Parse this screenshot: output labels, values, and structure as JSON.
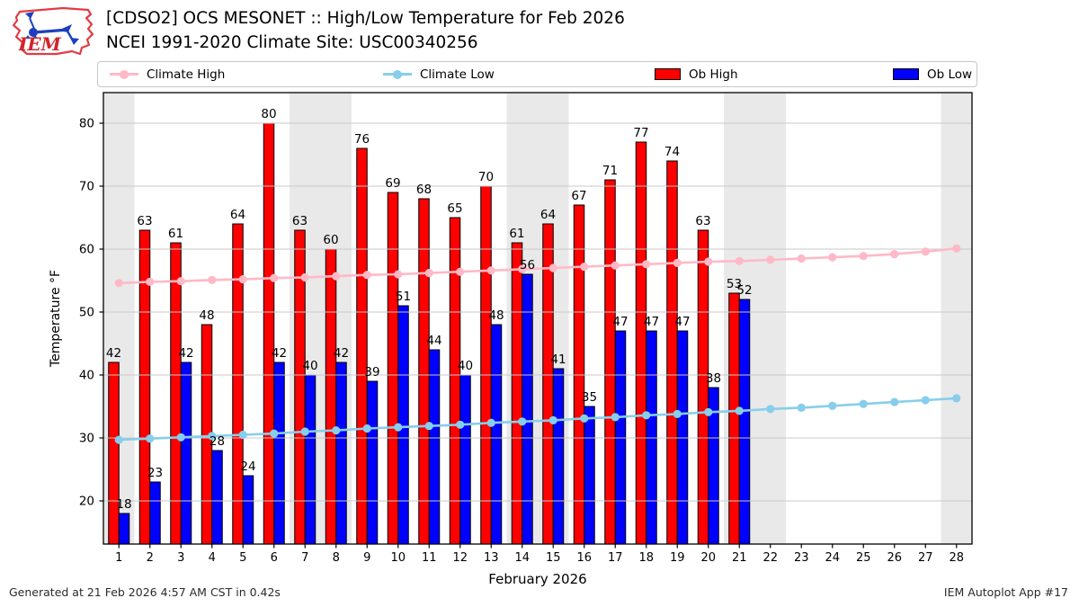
{
  "header": {
    "title_line1": "[CDSO2] OCS MESONET :: High/Low Temperature for Feb 2026",
    "title_line2": "NCEI 1991-2020 Climate Site: USC00340256",
    "logo_text": "IEM"
  },
  "legend": {
    "items": [
      {
        "label": "Climate High",
        "type": "line",
        "color": "#ffb9c6"
      },
      {
        "label": "Climate Low",
        "type": "line",
        "color": "#87ceeb"
      },
      {
        "label": "Ob High",
        "type": "patch",
        "color": "#ff0000"
      },
      {
        "label": "Ob Low",
        "type": "patch",
        "color": "#0000ff"
      }
    ]
  },
  "footer": {
    "left": "Generated at 21 Feb 2026 4:57 AM CST in 0.42s",
    "right": "IEM Autoplot App #17"
  },
  "chart_data": {
    "type": "bar",
    "x": [
      1,
      2,
      3,
      4,
      5,
      6,
      7,
      8,
      9,
      10,
      11,
      12,
      13,
      14,
      15,
      16,
      17,
      18,
      19,
      20,
      21,
      22,
      23,
      24,
      25,
      26,
      27,
      28
    ],
    "xlabel": "February 2026",
    "ylabel": "Temperature °F",
    "ylim": [
      13,
      85
    ],
    "yticks": [
      20,
      30,
      40,
      50,
      60,
      70,
      80
    ],
    "grid": true,
    "legend_position": "top",
    "weekend_bands": [
      [
        0.5,
        1.5
      ],
      [
        6.5,
        8.5
      ],
      [
        13.5,
        15.5
      ],
      [
        20.5,
        22.5
      ],
      [
        27.5,
        28.5
      ]
    ],
    "colors": {
      "band": "#e9e9e9",
      "grid": "#c9c9c9",
      "spine": "#000000",
      "bar_edge": "#000000",
      "label_text": "#000000"
    },
    "series": [
      {
        "name": "Climate High",
        "type": "line",
        "color": "#ffb9c6",
        "values": [
          54.6,
          54.8,
          54.9,
          55.1,
          55.2,
          55.4,
          55.5,
          55.7,
          55.9,
          56.0,
          56.2,
          56.4,
          56.6,
          56.8,
          57.0,
          57.2,
          57.4,
          57.6,
          57.8,
          58.0,
          58.1,
          58.3,
          58.5,
          58.7,
          58.9,
          59.2,
          59.6,
          60.1
        ]
      },
      {
        "name": "Climate Low",
        "type": "line",
        "color": "#87ceeb",
        "values": [
          29.7,
          29.9,
          30.1,
          30.3,
          30.5,
          30.7,
          31.0,
          31.2,
          31.5,
          31.7,
          31.9,
          32.1,
          32.4,
          32.6,
          32.8,
          33.1,
          33.3,
          33.6,
          33.8,
          34.1,
          34.3,
          34.6,
          34.8,
          35.1,
          35.4,
          35.7,
          36.0,
          36.3
        ]
      },
      {
        "name": "Ob High",
        "type": "bar",
        "color": "#ff0000",
        "values": [
          42,
          63,
          61,
          48,
          64,
          80,
          63,
          60,
          76,
          69,
          68,
          65,
          70,
          61,
          64,
          67,
          71,
          77,
          74,
          63,
          53,
          null,
          null,
          null,
          null,
          null,
          null,
          null
        ]
      },
      {
        "name": "Ob Low",
        "type": "bar",
        "color": "#0000ff",
        "values": [
          18,
          23,
          42,
          28,
          24,
          42,
          40,
          42,
          39,
          51,
          44,
          40,
          48,
          56,
          41,
          35,
          47,
          47,
          47,
          38,
          52,
          null,
          null,
          null,
          null,
          null,
          null,
          null
        ]
      }
    ]
  }
}
